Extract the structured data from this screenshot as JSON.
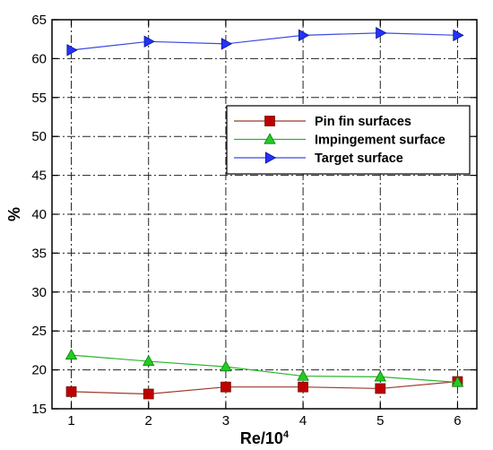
{
  "chart_data": {
    "type": "line",
    "xlabel": "Re/10",
    "xlabel_superscript": "4",
    "ylabel": "%",
    "x": [
      1,
      2,
      3,
      4,
      5,
      6
    ],
    "xlim": [
      0.75,
      6.25
    ],
    "ylim": [
      15,
      65
    ],
    "xticks": [
      1,
      2,
      3,
      4,
      5,
      6
    ],
    "yticks": [
      15,
      20,
      25,
      30,
      35,
      40,
      45,
      50,
      55,
      60,
      65
    ],
    "grid": true,
    "legend_position": "center-right",
    "series": [
      {
        "name": "Pin fin surfaces",
        "values": [
          17.2,
          16.9,
          17.8,
          17.8,
          17.6,
          18.5
        ],
        "marker": "square",
        "line_color": "#9b3b2b",
        "marker_color": "#c00000",
        "marker_edge": "#6e1a10"
      },
      {
        "name": "Impingement surface",
        "values": [
          21.9,
          21.1,
          20.4,
          19.2,
          19.1,
          18.4
        ],
        "marker": "triangle-up",
        "line_color": "#2bb52b",
        "marker_color": "#22cc22",
        "marker_edge": "#0f7a0f"
      },
      {
        "name": "Target surface",
        "values": [
          61.1,
          62.2,
          61.9,
          63.0,
          63.3,
          63.0
        ],
        "marker": "triangle-right",
        "line_color": "#3b4be0",
        "marker_color": "#2233ff",
        "marker_edge": "#0a128a"
      }
    ]
  }
}
